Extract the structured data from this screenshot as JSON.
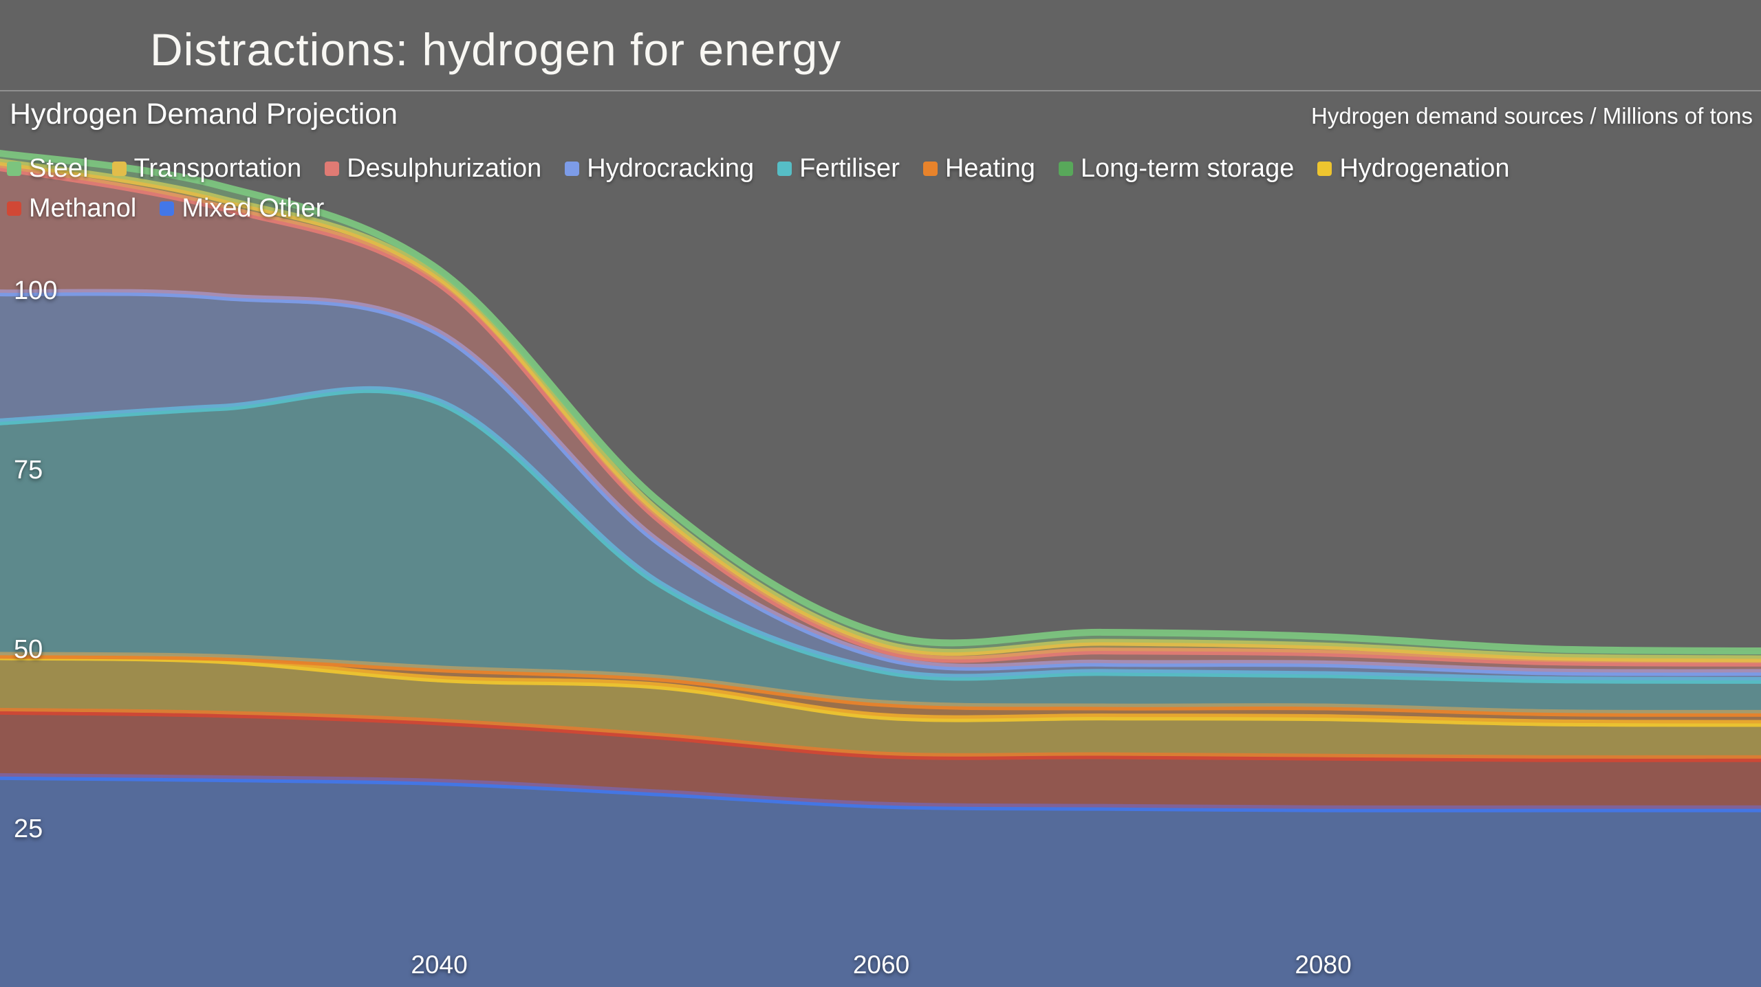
{
  "header": {
    "title": "Distractions: hydrogen for energy"
  },
  "chart": {
    "title": "Hydrogen Demand Projection",
    "unit_label": "Hydrogen demand sources / Millions of tons",
    "background": "#636363",
    "text_color": "#ffffff"
  },
  "chart_data": {
    "type": "area",
    "stacked": true,
    "title": "Hydrogen Demand Projection",
    "ylabel": "Hydrogen demand sources / Millions of tons",
    "xlabel": "",
    "grid": false,
    "legend_position": "top-left",
    "x": [
      2020,
      2030,
      2040,
      2050,
      2060,
      2070,
      2080,
      2090,
      2100
    ],
    "x_ticks": [
      "2040",
      "2060",
      "2080"
    ],
    "x_tick_values": [
      2040,
      2060,
      2080
    ],
    "y_ticks": [
      "100",
      "75",
      "50",
      "25"
    ],
    "y_tick_values": [
      100,
      75,
      50,
      25
    ],
    "xlim": [
      2020,
      2100
    ],
    "ylim": [
      0,
      121
    ],
    "stack_order": [
      "Mixed Other",
      "Methanol",
      "Hydrogenation",
      "Long-term storage",
      "Heating",
      "Fertiliser",
      "Hydrocracking",
      "Desulphurization",
      "Transportation",
      "Steel"
    ],
    "series": [
      {
        "name": "Steel",
        "color": "#7cc47e",
        "values": [
          1.2,
          1.8,
          1.0,
          1.5,
          1.3,
          1.4,
          1.3,
          1.1,
          1.1
        ]
      },
      {
        "name": "Transportation",
        "color": "#e2bd4a",
        "values": [
          0.8,
          1.2,
          0.9,
          1.0,
          0.9,
          1.2,
          1.0,
          0.7,
          0.6
        ]
      },
      {
        "name": "Desulphurization",
        "color": "#e07b74",
        "values": [
          17.5,
          12.5,
          6.9,
          3.2,
          1.0,
          1.7,
          1.5,
          1.4,
          1.3
        ]
      },
      {
        "name": "Hydrocracking",
        "color": "#7d9ce8",
        "values": [
          18.0,
          15.5,
          9.6,
          5.7,
          1.9,
          1.3,
          1.5,
          1.1,
          1.1
        ]
      },
      {
        "name": "Fertiliser",
        "color": "#56bec6",
        "values": [
          32.5,
          34.8,
          37.2,
          13.1,
          4.6,
          4.8,
          4.5,
          4.6,
          4.6
        ]
      },
      {
        "name": "Heating",
        "color": "#e8832b",
        "values": [
          0.2,
          0.4,
          1.4,
          1.1,
          1.8,
          1.4,
          1.5,
          1.4,
          1.4
        ]
      },
      {
        "name": "Long-term storage",
        "color": "#58a85a",
        "values": [
          0,
          0,
          0,
          0,
          0,
          0,
          0,
          0,
          0
        ]
      },
      {
        "name": "Hydrogenation",
        "color": "#eec52f",
        "values": [
          7.6,
          7.5,
          6.0,
          7.0,
          5.4,
          5.4,
          5.5,
          5.0,
          4.9
        ]
      },
      {
        "name": "Methanol",
        "color": "#d14835",
        "values": [
          9.1,
          9.0,
          8.4,
          7.9,
          7.0,
          7.2,
          7.2,
          7.0,
          7.0
        ]
      },
      {
        "name": "Mixed Other",
        "color": "#4377e8",
        "values": [
          32.3,
          32.0,
          31.5,
          30.0,
          28.3,
          28.0,
          27.8,
          27.8,
          27.8
        ]
      }
    ]
  }
}
